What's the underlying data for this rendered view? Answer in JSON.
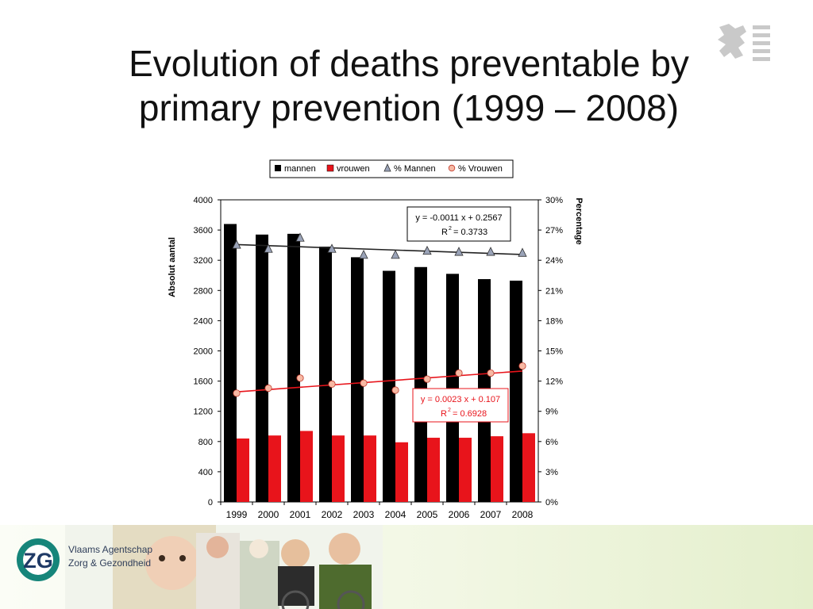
{
  "slide": {
    "title_line1": "Evolution of deaths preventable by",
    "title_line2": "primary prevention (1999 – 2008)"
  },
  "footer": {
    "agency_line1": "Vlaams Agentschap",
    "agency_line2": "Zorg & Gezondheid",
    "logo_text": "ZG"
  },
  "chart_data": {
    "type": "bar",
    "categories": [
      "1999",
      "2000",
      "2001",
      "2002",
      "2003",
      "2004",
      "2005",
      "2006",
      "2007",
      "2008"
    ],
    "ylabel_left": "Absolut aantal",
    "ylabel_right": "Percentage",
    "ylim_left": [
      0,
      4000
    ],
    "ylim_right": [
      0,
      30
    ],
    "yticks_left": [
      "0",
      "400",
      "800",
      "1200",
      "1600",
      "2000",
      "2400",
      "2800",
      "3200",
      "3600",
      "4000"
    ],
    "yticks_right": [
      "0%",
      "3%",
      "6%",
      "9%",
      "12%",
      "15%",
      "18%",
      "21%",
      "24%",
      "27%",
      "30%"
    ],
    "legend_position": "top",
    "series": [
      {
        "name": "mannen",
        "kind": "bar",
        "axis": "left",
        "color": "#000000",
        "values": [
          3680,
          3540,
          3550,
          3380,
          3240,
          3060,
          3110,
          3020,
          2950,
          2930
        ]
      },
      {
        "name": "vrouwen",
        "kind": "bar",
        "axis": "left",
        "color": "#e8141b",
        "values": [
          840,
          880,
          940,
          880,
          880,
          790,
          850,
          850,
          870,
          910
        ]
      },
      {
        "name": "% Mannen",
        "kind": "marker",
        "marker": "triangle",
        "axis": "right",
        "color": "#9aa3b8",
        "values": [
          25.5,
          25.1,
          26.2,
          25.1,
          24.5,
          24.5,
          24.9,
          24.8,
          24.8,
          24.7
        ]
      },
      {
        "name": "% Vrouwen",
        "kind": "marker",
        "marker": "circle",
        "axis": "right",
        "color": "#f7b9a4",
        "values": [
          10.8,
          11.3,
          12.3,
          11.7,
          11.8,
          11.1,
          12.2,
          12.8,
          12.8,
          13.5
        ]
      }
    ],
    "trendlines": [
      {
        "series": "% Mannen",
        "color": "#222222",
        "slope": -0.0011,
        "intercept": 0.2567,
        "equation": "y = -0.0011 x + 0.2567",
        "r2_prefix": "R",
        "r2_value": "= 0.3733"
      },
      {
        "series": "% Vrouwen",
        "color": "#e8141b",
        "slope": 0.0023,
        "intercept": 0.107,
        "equation": "y = 0.0023 x + 0.107",
        "r2_prefix": "R",
        "r2_value": "= 0.6928"
      }
    ]
  }
}
